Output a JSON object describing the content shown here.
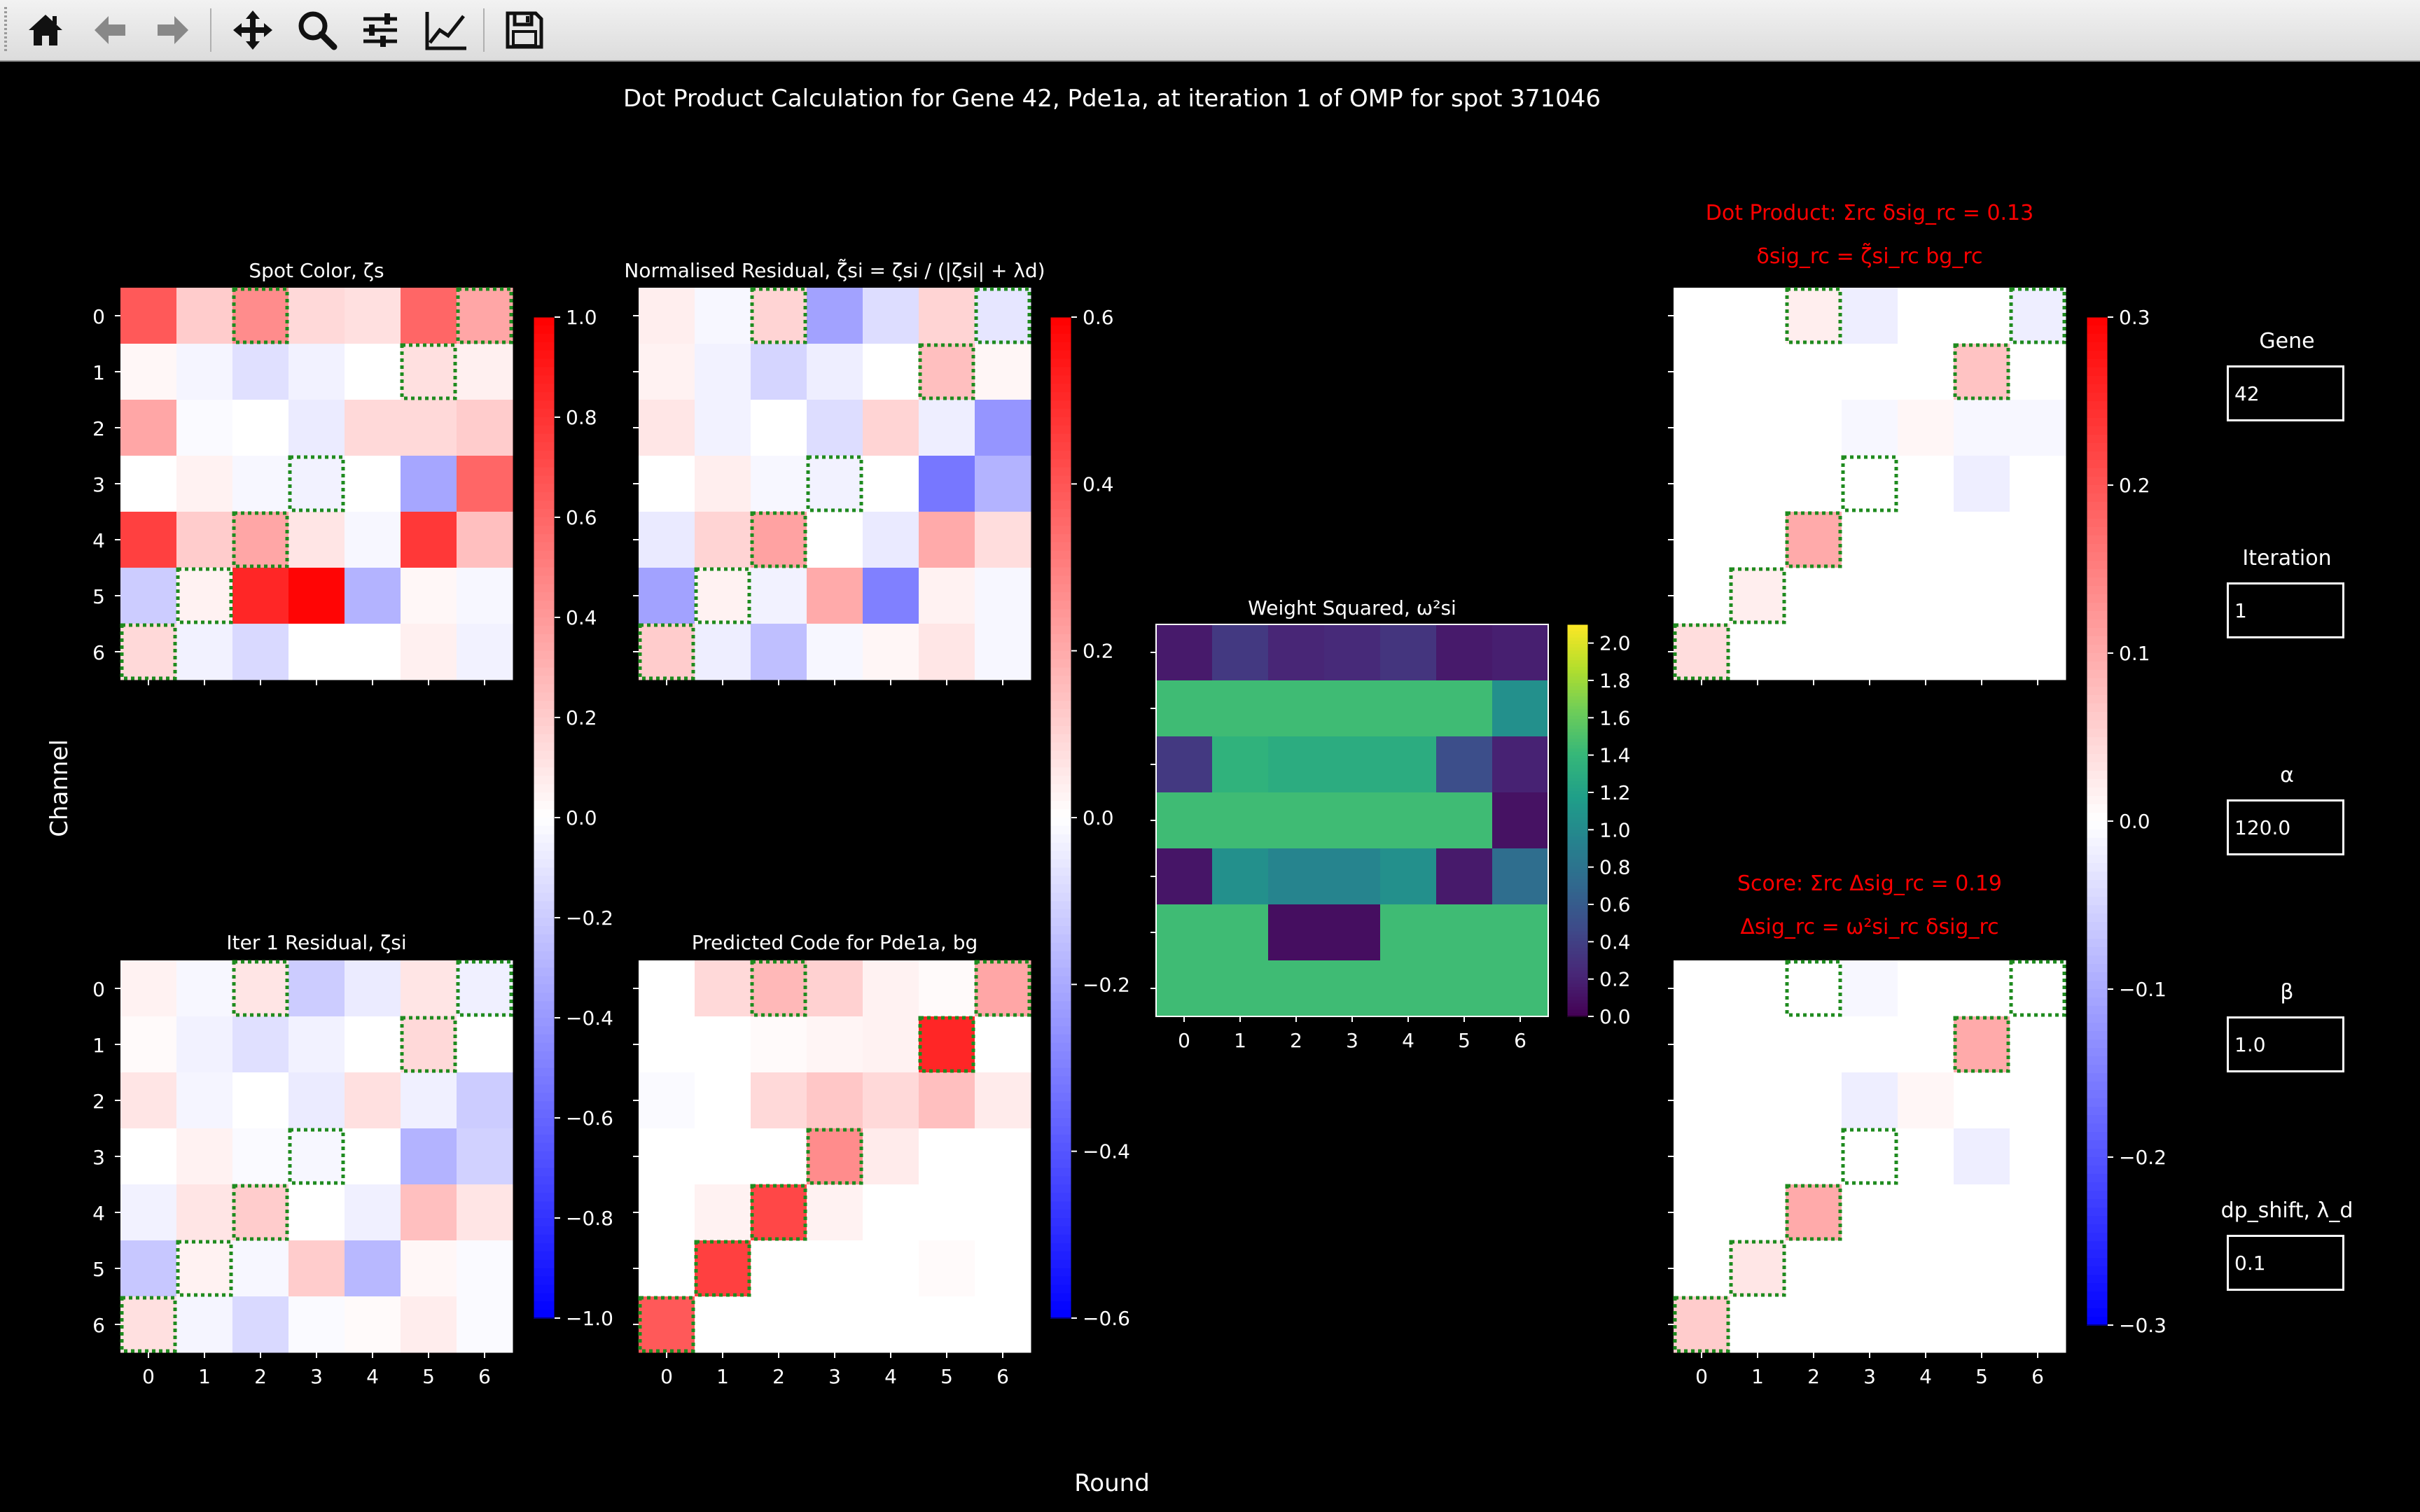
{
  "toolbar": {
    "buttons": [
      "home-icon",
      "back-icon",
      "forward-icon",
      "pan-icon",
      "zoom-icon",
      "configure-subplots-icon",
      "edit-axis-icon",
      "save-icon"
    ]
  },
  "figure": {
    "suptitle": "Dot Product Calculation for Gene 42, Pde1a, at iteration 1 of OMP for spot 371046",
    "xlabel": "Round",
    "ylabel": "Channel"
  },
  "widgets": [
    {
      "label": "Gene",
      "value": "42"
    },
    {
      "label": "Iteration",
      "value": "1"
    },
    {
      "label": "α",
      "value": "120.0"
    },
    {
      "label": "β",
      "value": "1.0"
    },
    {
      "label": "dp_shift, λ_d",
      "value": "0.1"
    }
  ],
  "colors": {
    "highlight_box": "#1f8b1f",
    "dot_product_text": "#ff0000"
  },
  "chart_data": [
    {
      "id": "spot_color",
      "type": "heatmap",
      "title": "Spot Color, ζs",
      "cmap": "bwr",
      "vmin": -1.0,
      "vmax": 1.0,
      "colorbar_ticks": [
        -1.0,
        -0.8,
        -0.6,
        -0.4,
        -0.2,
        0.0,
        0.2,
        0.4,
        0.6,
        0.8,
        1.0
      ],
      "values": [
        [
          0.65,
          0.2,
          0.45,
          0.15,
          0.12,
          0.6,
          0.35
        ],
        [
          0.03,
          -0.04,
          -0.12,
          -0.05,
          0.0,
          0.12,
          0.06
        ],
        [
          0.35,
          -0.02,
          0.0,
          -0.08,
          0.15,
          0.15,
          0.2
        ],
        [
          0.0,
          0.05,
          -0.03,
          -0.05,
          0.0,
          -0.35,
          0.6
        ],
        [
          0.75,
          0.2,
          0.35,
          0.1,
          -0.03,
          0.78,
          0.25
        ],
        [
          -0.2,
          0.05,
          0.85,
          0.98,
          -0.3,
          0.03,
          -0.03
        ],
        [
          0.15,
          -0.05,
          -0.15,
          0.0,
          0.0,
          0.06,
          -0.05
        ]
      ]
    },
    {
      "id": "normalised_residual",
      "type": "heatmap",
      "title": "Normalised Residual, ζ̃si = ζsi / (|ζsi| + λd)",
      "cmap": "bwr",
      "vmin": -0.6,
      "vmax": 0.6,
      "colorbar_ticks": [
        -0.6,
        -0.4,
        -0.2,
        0.0,
        0.2,
        0.4,
        0.6
      ],
      "values": [
        [
          0.04,
          -0.02,
          0.1,
          -0.22,
          -0.08,
          0.1,
          -0.06
        ],
        [
          0.03,
          -0.03,
          -0.1,
          -0.04,
          0.0,
          0.15,
          0.02
        ],
        [
          0.06,
          -0.03,
          0.0,
          -0.08,
          0.1,
          -0.04,
          -0.25
        ],
        [
          0.0,
          0.04,
          -0.02,
          -0.03,
          0.0,
          -0.32,
          -0.18
        ],
        [
          -0.05,
          0.1,
          0.22,
          0.0,
          -0.05,
          0.2,
          0.08
        ],
        [
          -0.22,
          0.03,
          -0.03,
          0.2,
          -0.3,
          0.03,
          -0.02
        ],
        [
          0.12,
          -0.04,
          -0.15,
          -0.02,
          0.02,
          0.06,
          -0.02
        ]
      ]
    },
    {
      "id": "weight_squared",
      "type": "heatmap",
      "title": "Weight Squared, ω²si",
      "cmap": "viridis",
      "vmin": 0.0,
      "vmax": 2.1,
      "colorbar_ticks": [
        0.0,
        0.2,
        0.4,
        0.6,
        0.8,
        1.0,
        1.2,
        1.4,
        1.6,
        1.8,
        2.0
      ],
      "values": [
        [
          0.15,
          0.35,
          0.22,
          0.25,
          0.32,
          0.15,
          0.18
        ],
        [
          1.44,
          1.44,
          1.44,
          1.44,
          1.44,
          1.44,
          1.05
        ],
        [
          0.35,
          1.35,
          1.3,
          1.3,
          1.3,
          0.5,
          0.2
        ],
        [
          1.44,
          1.44,
          1.44,
          1.44,
          1.44,
          1.44,
          0.1
        ],
        [
          0.12,
          1.05,
          0.95,
          0.95,
          1.05,
          0.15,
          0.75
        ],
        [
          1.44,
          1.44,
          0.08,
          0.08,
          1.44,
          1.44,
          1.44
        ],
        [
          1.44,
          1.44,
          1.44,
          1.44,
          1.44,
          1.44,
          1.44
        ]
      ]
    },
    {
      "id": "dot_product",
      "type": "heatmap",
      "title_lines": [
        "Dot Product: Σrc δsig_rc = 0.13",
        "δsig_rc = ζ̃si_rc bg_rc"
      ],
      "title_color": "#ff0000",
      "cmap": "bwr",
      "vmin": -0.3,
      "vmax": 0.3,
      "colorbar_ticks": [
        -0.3,
        -0.2,
        -0.1,
        0.0,
        0.1,
        0.2,
        0.3
      ],
      "values": [
        [
          0.0,
          0.0,
          0.02,
          -0.02,
          0.0,
          0.0,
          -0.02
        ],
        [
          0.0,
          0.0,
          0.0,
          0.0,
          0.0,
          0.07,
          0.0
        ],
        [
          0.0,
          0.0,
          0.0,
          -0.01,
          0.01,
          -0.01,
          -0.01
        ],
        [
          0.0,
          0.0,
          0.0,
          0.0,
          0.0,
          -0.02,
          0.0
        ],
        [
          0.0,
          0.0,
          0.1,
          0.0,
          0.0,
          0.0,
          0.0
        ],
        [
          0.0,
          0.02,
          0.0,
          0.0,
          0.0,
          0.0,
          0.0
        ],
        [
          0.04,
          0.0,
          0.0,
          0.0,
          0.0,
          0.0,
          0.0
        ]
      ]
    },
    {
      "id": "iter1_residual",
      "type": "heatmap",
      "title": "Iter 1 Residual, ζsi",
      "cmap": "bwr",
      "vmin": -1.0,
      "vmax": 1.0,
      "values": [
        [
          0.05,
          -0.03,
          0.1,
          -0.2,
          -0.08,
          0.1,
          -0.06
        ],
        [
          0.02,
          -0.05,
          -0.12,
          -0.05,
          0.0,
          0.15,
          0.0
        ],
        [
          0.1,
          -0.04,
          0.0,
          -0.08,
          0.12,
          -0.06,
          -0.2
        ],
        [
          0.0,
          0.05,
          -0.02,
          -0.03,
          0.0,
          -0.3,
          -0.18
        ],
        [
          -0.05,
          0.1,
          0.2,
          0.0,
          -0.06,
          0.25,
          0.1
        ],
        [
          -0.22,
          0.05,
          -0.03,
          0.2,
          -0.28,
          0.03,
          -0.02
        ],
        [
          0.12,
          -0.04,
          -0.15,
          -0.02,
          0.02,
          0.07,
          -0.02
        ]
      ]
    },
    {
      "id": "predicted_code",
      "type": "heatmap",
      "title": "Predicted Code for Pde1a, bg",
      "cmap": "bwr",
      "vmin": -1.0,
      "vmax": 1.0,
      "values": [
        [
          0.0,
          0.15,
          0.28,
          0.18,
          0.05,
          0.02,
          0.35
        ],
        [
          0.0,
          0.0,
          0.02,
          0.04,
          0.05,
          0.85,
          0.0
        ],
        [
          -0.02,
          0.0,
          0.15,
          0.22,
          0.15,
          0.25,
          0.08
        ],
        [
          0.0,
          0.0,
          0.0,
          0.45,
          0.08,
          0.0,
          0.0
        ],
        [
          0.0,
          0.05,
          0.72,
          0.05,
          0.0,
          0.0,
          0.0
        ],
        [
          0.0,
          0.75,
          0.0,
          0.0,
          0.0,
          0.02,
          0.0
        ],
        [
          0.65,
          0.0,
          0.0,
          0.0,
          0.0,
          0.0,
          0.0
        ]
      ]
    },
    {
      "id": "score",
      "type": "heatmap",
      "title_lines": [
        "Score: Σrc Δsig_rc = 0.19",
        "Δsig_rc = ω²si_rc δsig_rc"
      ],
      "title_color": "#ff0000",
      "cmap": "bwr",
      "vmin": -0.3,
      "vmax": 0.3,
      "values": [
        [
          0.0,
          0.0,
          0.0,
          -0.01,
          0.0,
          0.0,
          0.0
        ],
        [
          0.0,
          0.0,
          0.0,
          0.0,
          0.0,
          0.1,
          0.0
        ],
        [
          0.0,
          0.0,
          0.0,
          -0.02,
          0.01,
          0.0,
          0.0
        ],
        [
          0.0,
          0.0,
          0.0,
          0.0,
          0.0,
          -0.02,
          0.0
        ],
        [
          0.0,
          0.0,
          0.1,
          0.0,
          0.0,
          0.0,
          0.0
        ],
        [
          0.0,
          0.03,
          0.0,
          0.0,
          0.0,
          0.0,
          0.0
        ],
        [
          0.06,
          0.0,
          0.0,
          0.0,
          0.0,
          0.0,
          0.0
        ]
      ]
    }
  ],
  "highlight_cells": [
    [
      0,
      2
    ],
    [
      0,
      6
    ],
    [
      1,
      5
    ],
    [
      3,
      3
    ],
    [
      4,
      2
    ],
    [
      5,
      1
    ],
    [
      6,
      0
    ]
  ],
  "tick_labels": [
    "0",
    "1",
    "2",
    "3",
    "4",
    "5",
    "6"
  ]
}
